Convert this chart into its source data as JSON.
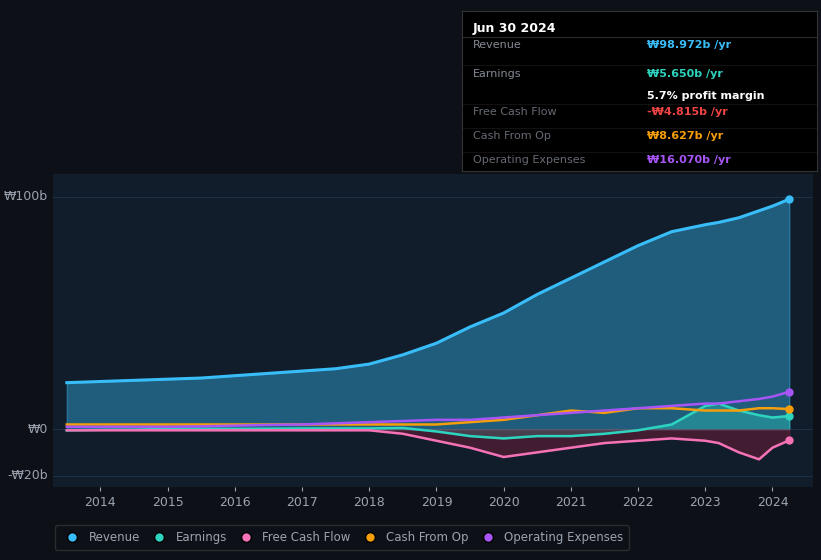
{
  "bg_color": "#0d1117",
  "plot_bg_color": "#111d2b",
  "grid_color": "#1e3348",
  "text_color": "#9ca3af",
  "title_color": "#ffffff",
  "ylabel_100": "₩100b",
  "ylabel_0": "₩0",
  "ylabel_neg20": "-₩20b",
  "years": [
    2013.5,
    2014.0,
    2014.5,
    2015.0,
    2015.5,
    2016.0,
    2016.5,
    2017.0,
    2017.5,
    2018.0,
    2018.5,
    2019.0,
    2019.5,
    2020.0,
    2020.5,
    2021.0,
    2021.5,
    2022.0,
    2022.5,
    2023.0,
    2023.2,
    2023.5,
    2023.8,
    2024.0,
    2024.25
  ],
  "revenue": [
    20,
    20.5,
    21,
    21.5,
    22,
    23,
    24,
    25,
    26,
    28,
    32,
    37,
    44,
    50,
    58,
    65,
    72,
    79,
    85,
    88,
    89,
    91,
    94,
    96,
    99
  ],
  "earnings": [
    -0.5,
    -0.3,
    -0.2,
    0.1,
    0.2,
    0.1,
    0.2,
    0.3,
    0.3,
    0.3,
    0.5,
    -1,
    -3,
    -4,
    -3,
    -3,
    -2,
    -0.5,
    2,
    10,
    11,
    8,
    6,
    5,
    5.65
  ],
  "free_cash_flow": [
    -0.5,
    -0.5,
    -0.5,
    -0.5,
    -0.5,
    -0.5,
    -0.5,
    -0.5,
    -0.5,
    -0.5,
    -2,
    -5,
    -8,
    -12,
    -10,
    -8,
    -6,
    -5,
    -4,
    -5,
    -6,
    -10,
    -13,
    -8,
    -4.815
  ],
  "cash_from_op": [
    2,
    2,
    2,
    2,
    2,
    2,
    2,
    2,
    2,
    2,
    2,
    2,
    3,
    4,
    6,
    8,
    7,
    9,
    9,
    8,
    8,
    8,
    9,
    9,
    8.627
  ],
  "operating_expenses": [
    1,
    1,
    1,
    1,
    1.2,
    1.5,
    1.8,
    2,
    2.5,
    3,
    3.5,
    4,
    4,
    5,
    6,
    7,
    8,
    9,
    10,
    11,
    11,
    12,
    13,
    14,
    16.07
  ],
  "revenue_color": "#38bdf8",
  "earnings_color": "#2dd4bf",
  "fcf_color": "#f472b6",
  "cashop_color": "#f59e0b",
  "opex_color": "#a855f7",
  "fcf_neg_color": "#e11d48",
  "legend_items": [
    "Revenue",
    "Earnings",
    "Free Cash Flow",
    "Cash From Op",
    "Operating Expenses"
  ],
  "tooltip_title": "Jun 30 2024",
  "tooltip_revenue_label": "Revenue",
  "tooltip_revenue_val": "₩98.972b /yr",
  "tooltip_earnings_label": "Earnings",
  "tooltip_earnings_val": "₩5.650b /yr",
  "tooltip_margin": "5.7% profit margin",
  "tooltip_fcf_label": "Free Cash Flow",
  "tooltip_fcf_val": "-₩4.815b /yr",
  "tooltip_cashop_label": "Cash From Op",
  "tooltip_cashop_val": "₩8.627b /yr",
  "tooltip_opex_label": "Operating Expenses",
  "tooltip_opex_val": "₩16.070b /yr",
  "xlim": [
    2013.3,
    2024.6
  ],
  "ylim": [
    -25,
    110
  ],
  "xticks": [
    2014,
    2015,
    2016,
    2017,
    2018,
    2019,
    2020,
    2021,
    2022,
    2023,
    2024
  ]
}
